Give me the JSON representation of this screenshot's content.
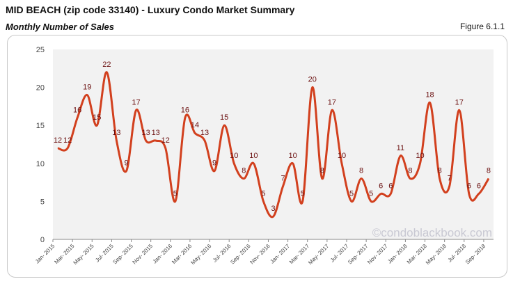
{
  "header": {
    "title": "MID BEACH (zip code 33140) - Luxury Condo Market Summary",
    "subtitle": "Monthly Number of Sales",
    "figure": "Figure 6.1.1"
  },
  "watermark": "©condoblackbook.com",
  "chart_data": {
    "type": "line",
    "title": "",
    "xlabel": "",
    "ylabel": "",
    "ylim": [
      0,
      25
    ],
    "yticks": [
      "0",
      "5",
      "10",
      "15",
      "20",
      "25"
    ],
    "x": [
      "Jan-2015",
      "Feb-2015",
      "Mar-2015",
      "Apr-2015",
      "May-2015",
      "Jun-2015",
      "Jul-2015",
      "Aug-2015",
      "Sep-2015",
      "Oct-2015",
      "Nov-2015",
      "Dec-2015",
      "Jan-2016",
      "Feb-2016",
      "Mar-2016",
      "Apr-2016",
      "May-2016",
      "Jun-2016",
      "Jul-2016",
      "Aug-2016",
      "Sep-2016",
      "Oct-2016",
      "Nov-2016",
      "Dec-2016",
      "Jan-2017",
      "Feb-2017",
      "Mar-2017",
      "Apr-2017",
      "May-2017",
      "Jun-2017",
      "Jul-2017",
      "Aug-2017",
      "Sep-2017",
      "Oct-2017",
      "Nov-2017",
      "Dec-2017",
      "Jan-2018",
      "Feb-2018",
      "Mar-2018",
      "Apr-2018",
      "May-2018",
      "Jun-2018",
      "Jul-2018",
      "Aug-2018",
      "Sep-2018"
    ],
    "xtick_labels": [
      "Jan- 2015",
      "Mar- 2015",
      "May- 2015",
      "Jul- 2015",
      "Sep- 2015",
      "Nov- 2015",
      "Jan- 2016",
      "Mar- 2016",
      "May- 2016",
      "Jul- 2016",
      "Sep- 2016",
      "Nov- 2016",
      "Jan- 2017",
      "Mar- 2017",
      "May- 2017",
      "Jul- 2017",
      "Sep- 2017",
      "Nov- 2017",
      "Jan- 2018",
      "Mar- 2018",
      "May- 2018",
      "Jul- 2018",
      "Sep- 2018"
    ],
    "values": [
      12,
      12,
      16,
      19,
      15,
      22,
      13,
      9,
      17,
      13,
      13,
      12,
      5,
      16,
      14,
      13,
      9,
      15,
      10,
      8,
      10,
      5,
      3,
      7,
      10,
      5,
      20,
      8,
      17,
      10,
      5,
      8,
      5,
      6,
      6,
      11,
      8,
      10,
      18,
      8,
      7,
      17,
      6,
      6,
      8
    ],
    "grid": false,
    "legend": "none",
    "colors": {
      "line": "#d2401e",
      "label": "#6b1010",
      "plot_bg": "#f2f2f2"
    }
  }
}
